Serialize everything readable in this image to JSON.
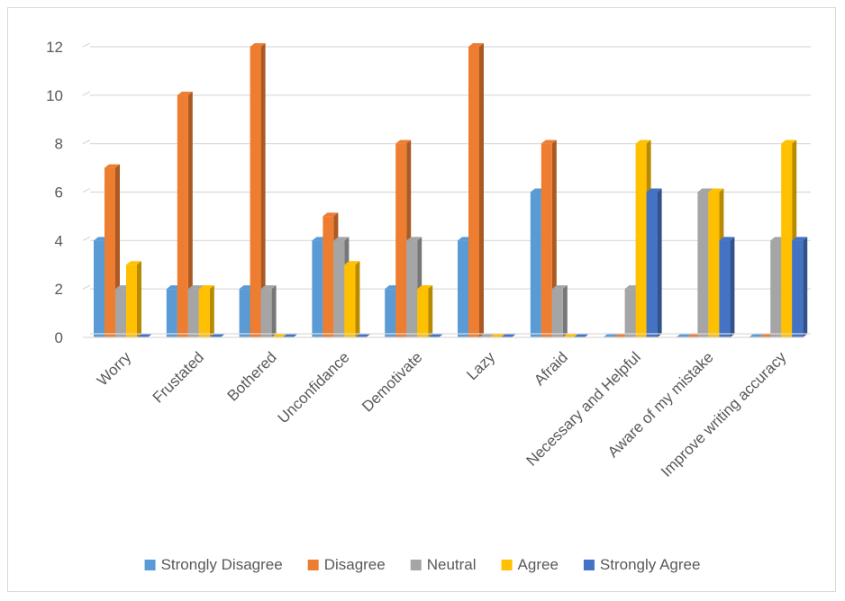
{
  "chart_data": {
    "type": "bar",
    "categories": [
      "Worry",
      "Frustated",
      "Bothered",
      "Unconfidance",
      "Demotivate",
      "Lazy",
      "Afraid",
      "Necessary and Helpful",
      "Aware of my mistake",
      "Improve writing accuracy"
    ],
    "series": [
      {
        "name": "Strongly Disagree",
        "color": "#5b9bd5",
        "values": [
          4,
          2,
          2,
          4,
          2,
          4,
          6,
          0,
          0,
          0
        ]
      },
      {
        "name": "Disagree",
        "color": "#ed7d31",
        "values": [
          7,
          10,
          12,
          5,
          8,
          12,
          8,
          0,
          0,
          0
        ]
      },
      {
        "name": "Neutral",
        "color": "#a5a5a5",
        "values": [
          2,
          2,
          2,
          4,
          4,
          0,
          2,
          2,
          6,
          4
        ]
      },
      {
        "name": "Agree",
        "color": "#ffc000",
        "values": [
          3,
          2,
          0,
          3,
          2,
          0,
          0,
          8,
          6,
          8
        ]
      },
      {
        "name": "Strongly Agree",
        "color": "#4472c4",
        "values": [
          0,
          0,
          0,
          0,
          0,
          0,
          0,
          6,
          4,
          4
        ]
      }
    ],
    "yticks": [
      "0",
      "2",
      "4",
      "6",
      "8",
      "10",
      "12"
    ],
    "ylim": [
      0,
      12
    ],
    "grid": true,
    "legend": "bottom",
    "title": "",
    "xlabel": "",
    "ylabel": ""
  }
}
